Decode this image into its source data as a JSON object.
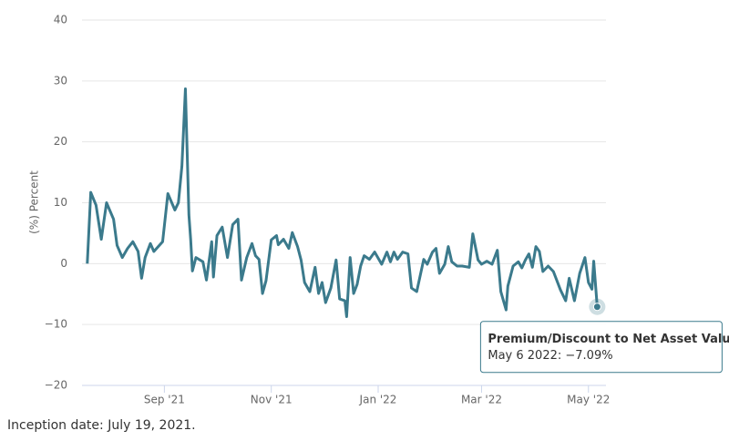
{
  "chart_data": {
    "type": "line",
    "y_axis_label": "(%) Percent",
    "series": [
      {
        "name": "Premium/Discount to Net Asset Value",
        "color": "#3b7a8c",
        "x": [
          "2021-07-19",
          "2021-07-21",
          "2021-07-24",
          "2021-07-27",
          "2021-07-30",
          "2021-08-03",
          "2021-08-05",
          "2021-08-08",
          "2021-08-11",
          "2021-08-14",
          "2021-08-17",
          "2021-08-19",
          "2021-08-21",
          "2021-08-24",
          "2021-08-26",
          "2021-08-31",
          "2021-09-03",
          "2021-09-07",
          "2021-09-09",
          "2021-09-11",
          "2021-09-13",
          "2021-09-15",
          "2021-09-16",
          "2021-09-17",
          "2021-09-19",
          "2021-09-23",
          "2021-09-25",
          "2021-09-28",
          "2021-09-29",
          "2021-10-01",
          "2021-10-04",
          "2021-10-07",
          "2021-10-10",
          "2021-10-13",
          "2021-10-15",
          "2021-10-18",
          "2021-10-21",
          "2021-10-23",
          "2021-10-25",
          "2021-10-27",
          "2021-10-29",
          "2021-11-01",
          "2021-11-04",
          "2021-11-05",
          "2021-11-08",
          "2021-11-11",
          "2021-11-13",
          "2021-11-16",
          "2021-11-18",
          "2021-11-20",
          "2021-11-23",
          "2021-11-26",
          "2021-11-28",
          "2021-11-30",
          "2021-12-02",
          "2021-12-05",
          "2021-12-08",
          "2021-12-10",
          "2021-12-13",
          "2021-12-14",
          "2021-12-16",
          "2021-12-18",
          "2021-12-20",
          "2021-12-22",
          "2021-12-24",
          "2021-12-27",
          "2021-12-30",
          "2022-01-03",
          "2022-01-06",
          "2022-01-08",
          "2022-01-10",
          "2022-01-12",
          "2022-01-15",
          "2022-01-18",
          "2022-01-20",
          "2022-01-23",
          "2022-01-27",
          "2022-01-29",
          "2022-02-01",
          "2022-02-03",
          "2022-02-05",
          "2022-02-08",
          "2022-02-10",
          "2022-02-12",
          "2022-02-15",
          "2022-02-18",
          "2022-02-22",
          "2022-02-24",
          "2022-02-27",
          "2022-03-01",
          "2022-03-04",
          "2022-03-07",
          "2022-03-10",
          "2022-03-12",
          "2022-03-15",
          "2022-03-16",
          "2022-03-19",
          "2022-03-22",
          "2022-03-24",
          "2022-03-26",
          "2022-03-28",
          "2022-03-30",
          "2022-04-01",
          "2022-04-03",
          "2022-04-05",
          "2022-04-08",
          "2022-04-11",
          "2022-04-15",
          "2022-04-18",
          "2022-04-20",
          "2022-04-23",
          "2022-04-26",
          "2022-04-29",
          "2022-05-01",
          "2022-05-03",
          "2022-05-04",
          "2022-05-06"
        ],
        "values": [
          0,
          11.7,
          9.6,
          4,
          10,
          7.3,
          3,
          1,
          2.5,
          3.6,
          2,
          -2.4,
          1,
          3.3,
          2,
          3.6,
          11.5,
          8.8,
          10,
          16,
          28.7,
          8,
          4,
          -1.2,
          1,
          0.3,
          -2.7,
          3.6,
          -2.2,
          4.6,
          6,
          1,
          6.4,
          7.3,
          -2.7,
          1,
          3.3,
          1.3,
          0.7,
          -4.9,
          -2.8,
          3.9,
          4.6,
          3.1,
          4,
          2.5,
          5.1,
          2.8,
          0.6,
          -3.1,
          -4.6,
          -0.6,
          -4.9,
          -3.1,
          -6.4,
          -4,
          0.6,
          -5.8,
          -6.1,
          -8.7,
          1,
          -4.9,
          -3.4,
          -0.4,
          1.3,
          0.7,
          1.9,
          -0.1,
          1.9,
          0.3,
          1.9,
          0.7,
          1.9,
          1.6,
          -4,
          -4.6,
          0.7,
          -0.1,
          1.9,
          2.5,
          -1.6,
          -0.1,
          2.8,
          0.3,
          -0.4,
          -0.4,
          -0.6,
          4.9,
          0.6,
          -0.1,
          0.4,
          -0.1,
          2.2,
          -4.6,
          -7.6,
          -3.7,
          -0.4,
          0.3,
          -0.7,
          0.6,
          1.6,
          -0.6,
          2.8,
          2,
          -1.3,
          -0.4,
          -1.3,
          -4.3,
          -6.1,
          -2.4,
          -6.1,
          -1.6,
          1,
          -3.1,
          -4.2,
          0.4,
          -7.09
        ]
      }
    ],
    "xlim": [
      "2021-07-16",
      "2022-05-11"
    ],
    "xticks": [
      {
        "value": "2021-09-01",
        "label": "Sep '21"
      },
      {
        "value": "2021-11-01",
        "label": "Nov '21"
      },
      {
        "value": "2022-01-01",
        "label": "Jan '22"
      },
      {
        "value": "2022-03-01",
        "label": "Mar '22"
      },
      {
        "value": "2022-05-01",
        "label": "May '22"
      }
    ],
    "ylim": [
      -20,
      40
    ],
    "yticks": [
      {
        "value": -20,
        "label": "−20"
      },
      {
        "value": -10,
        "label": "−10"
      },
      0,
      10,
      20,
      30,
      40
    ],
    "grid": true,
    "tooltip": "May 6 2022: −7.09%"
  },
  "footer": "Inception date: July 19, 2021."
}
